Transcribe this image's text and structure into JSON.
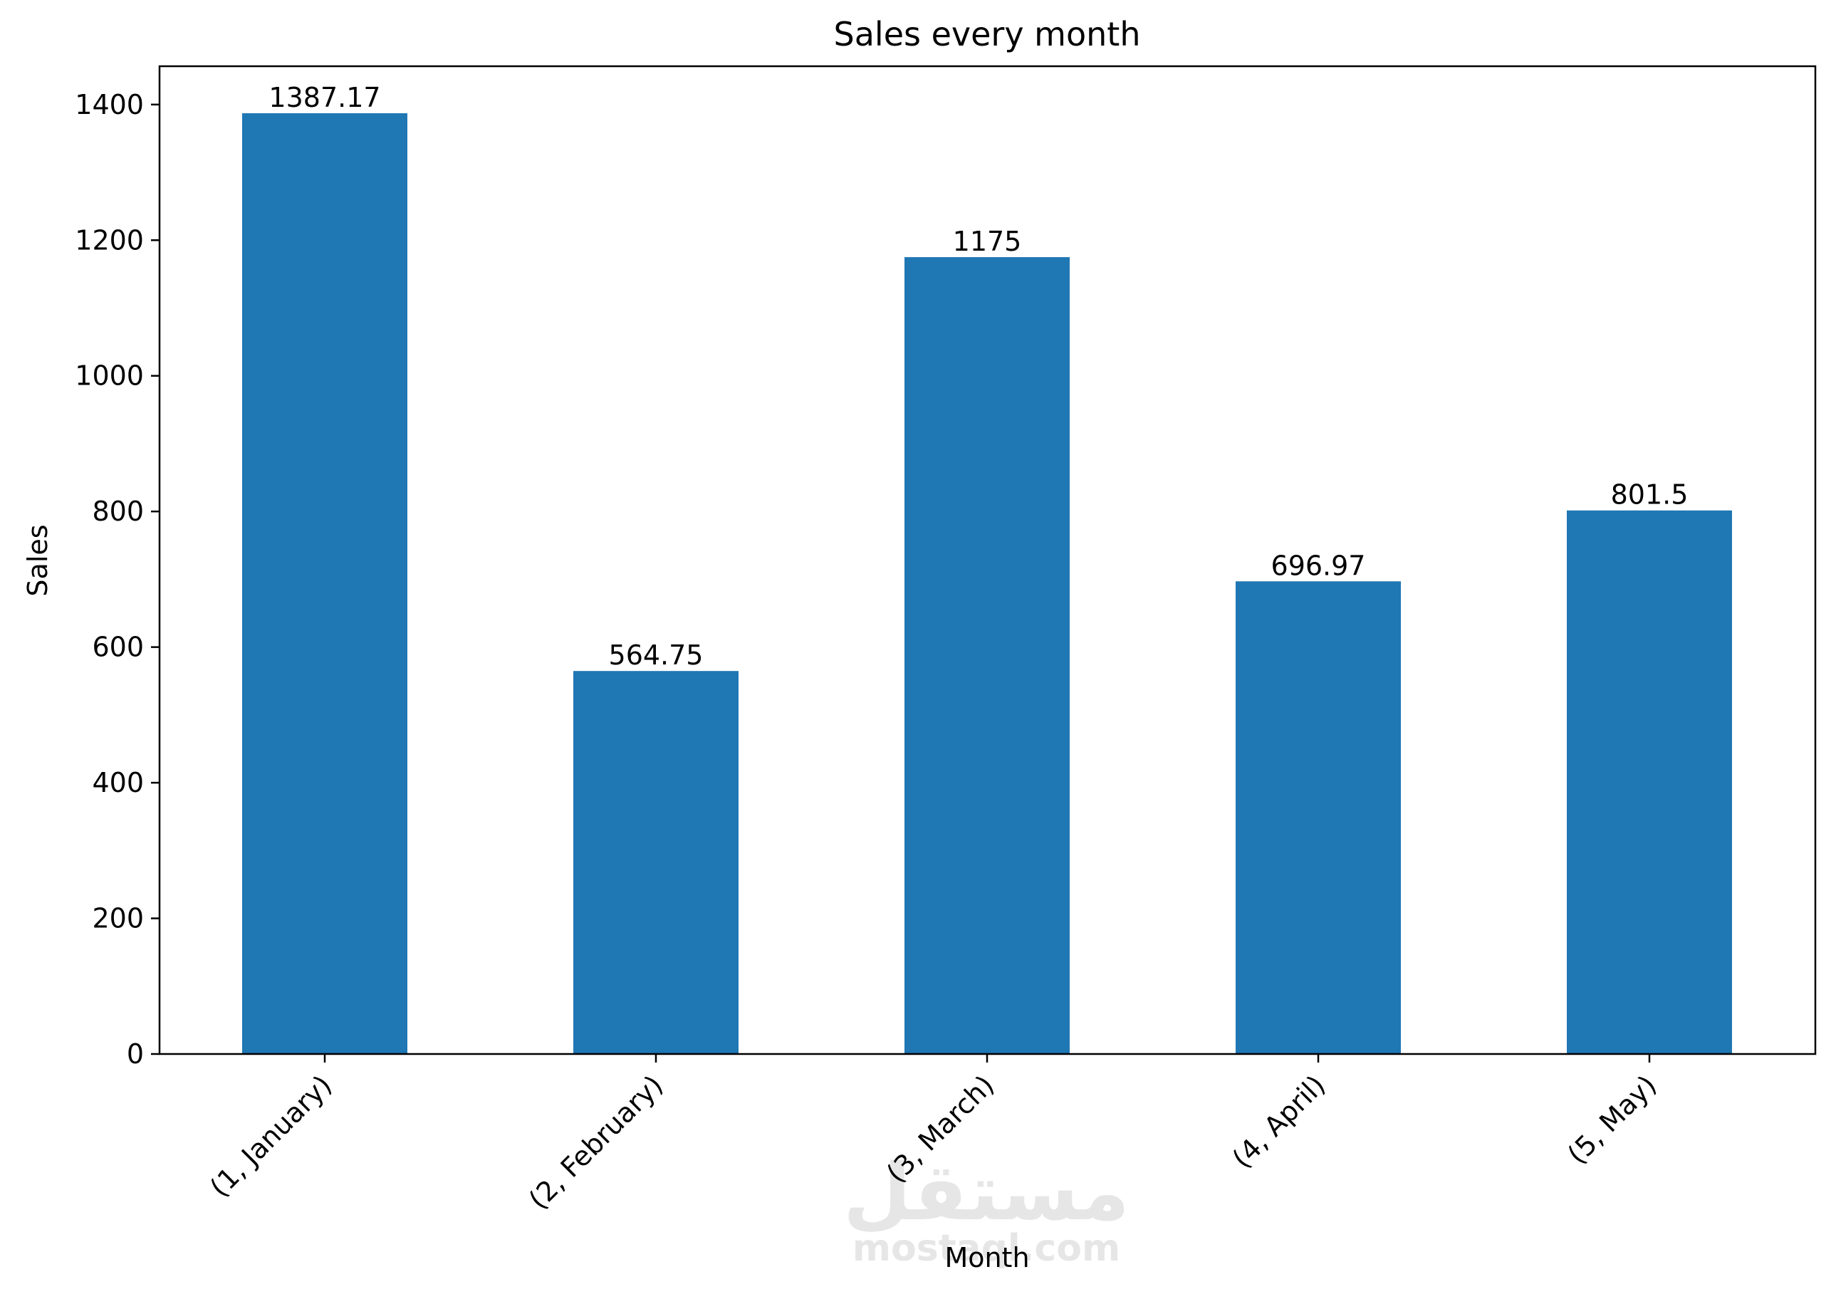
{
  "chart_data": {
    "type": "bar",
    "title": "Sales every month",
    "xlabel": "Month",
    "ylabel": "Sales",
    "categories": [
      "(1, January)",
      "(2, February)",
      "(3, March)",
      "(4, April)",
      "(5, May)"
    ],
    "values": [
      1387.17,
      564.75,
      1175,
      696.97,
      801.5
    ],
    "value_labels": [
      "1387.17",
      "564.75",
      "1175",
      "696.97",
      "801.5"
    ],
    "ylim": [
      0,
      1456.5
    ],
    "yticks": [
      0,
      200,
      400,
      600,
      800,
      1000,
      1200,
      1400
    ],
    "grid": false,
    "bar_color": "#1f77b4"
  },
  "watermark": {
    "logo_text": "مستقل",
    "site_text": "mostaql.com",
    "color": "#e6e6e6"
  }
}
